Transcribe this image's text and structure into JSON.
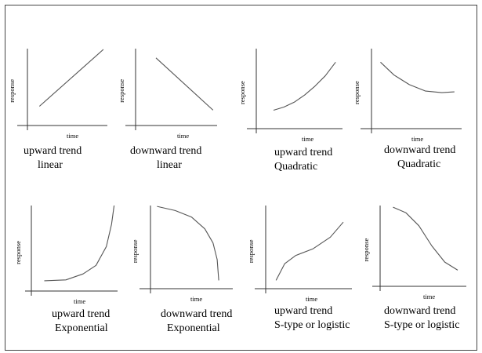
{
  "figure": {
    "panels": [
      {
        "caption": [
          "upward trend",
          "linear"
        ],
        "xlabel": "time",
        "ylabel": "response",
        "curve": [
          [
            0.15,
            0.25
          ],
          [
            0.95,
            0.99
          ]
        ]
      },
      {
        "caption": [
          "downward trend",
          "linear"
        ],
        "xlabel": "time",
        "ylabel": "response",
        "curve": [
          [
            0.25,
            0.88
          ],
          [
            0.95,
            0.2
          ]
        ]
      },
      {
        "caption": [
          "upward trend",
          "Quadratic"
        ],
        "xlabel": "time",
        "ylabel": "response",
        "curve": [
          [
            0.2,
            0.23
          ],
          [
            0.32,
            0.27
          ],
          [
            0.44,
            0.33
          ],
          [
            0.56,
            0.42
          ],
          [
            0.68,
            0.53
          ],
          [
            0.8,
            0.66
          ],
          [
            0.92,
            0.83
          ]
        ]
      },
      {
        "caption": [
          "downward trend",
          "Quadratic"
        ],
        "xlabel": "time",
        "ylabel": "response",
        "curve": [
          [
            0.1,
            0.83
          ],
          [
            0.25,
            0.67
          ],
          [
            0.42,
            0.55
          ],
          [
            0.6,
            0.47
          ],
          [
            0.78,
            0.45
          ],
          [
            0.92,
            0.46
          ]
        ]
      },
      {
        "caption": [
          "upward trend",
          "Exponential"
        ],
        "xlabel": "time",
        "ylabel": "response",
        "curve": [
          [
            0.15,
            0.12
          ],
          [
            0.4,
            0.13
          ],
          [
            0.6,
            0.2
          ],
          [
            0.75,
            0.3
          ],
          [
            0.87,
            0.52
          ],
          [
            0.93,
            0.78
          ],
          [
            0.96,
            1.0
          ]
        ]
      },
      {
        "caption": [
          "downward trend",
          "Exponential"
        ],
        "xlabel": "time",
        "ylabel": "response",
        "curve": [
          [
            0.08,
            0.99
          ],
          [
            0.3,
            0.94
          ],
          [
            0.5,
            0.86
          ],
          [
            0.66,
            0.72
          ],
          [
            0.76,
            0.55
          ],
          [
            0.81,
            0.35
          ],
          [
            0.83,
            0.1
          ]
        ]
      },
      {
        "caption": [
          "upward trend",
          "S-type or logistic"
        ],
        "xlabel": "time",
        "ylabel": "response",
        "curve": [
          [
            0.12,
            0.1
          ],
          [
            0.22,
            0.3
          ],
          [
            0.35,
            0.4
          ],
          [
            0.55,
            0.48
          ],
          [
            0.75,
            0.62
          ],
          [
            0.9,
            0.8
          ]
        ]
      },
      {
        "caption": [
          "downward trend",
          "S-type or logistic"
        ],
        "xlabel": "time",
        "ylabel": "response",
        "curve": [
          [
            0.15,
            0.98
          ],
          [
            0.3,
            0.91
          ],
          [
            0.45,
            0.75
          ],
          [
            0.6,
            0.5
          ],
          [
            0.75,
            0.3
          ],
          [
            0.9,
            0.2
          ]
        ]
      }
    ]
  }
}
